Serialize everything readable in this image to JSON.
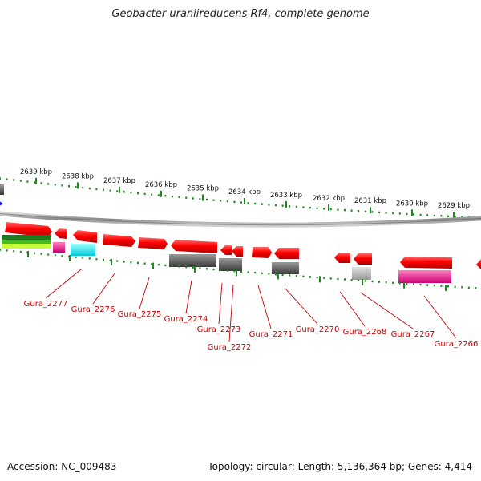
{
  "title": "Geobacter uraniireducens Rf4, complete genome",
  "footer": {
    "accession": "Accession: NC_009483",
    "summary": "Topology: circular; Length: 5,136,364 bp; Genes: 4,414"
  },
  "colors": {
    "backbone": "#8a8a8a",
    "tick": "#1a8a1a",
    "gene_label": "#cc0000",
    "cds": "#ff0000"
  },
  "scale_labels": [
    {
      "kbp": 2629,
      "label": "2629 kbp"
    },
    {
      "kbp": 2630,
      "label": "2630 kbp"
    },
    {
      "kbp": 2631,
      "label": "2631 kbp"
    },
    {
      "kbp": 2632,
      "label": "2632 kbp"
    },
    {
      "kbp": 2633,
      "label": "2633 kbp"
    },
    {
      "kbp": 2634,
      "label": "2634 kbp"
    },
    {
      "kbp": 2635,
      "label": "2635 kbp"
    },
    {
      "kbp": 2636,
      "label": "2636 kbp"
    },
    {
      "kbp": 2637,
      "label": "2637 kbp"
    },
    {
      "kbp": 2638,
      "label": "2638 kbp"
    },
    {
      "kbp": 2639,
      "label": "2639 kbp"
    }
  ],
  "gene_labels": [
    "Gura_2266",
    "Gura_2267",
    "Gura_2268",
    "Gura_2270",
    "Gura_2271",
    "Gura_2272",
    "Gura_2273",
    "Gura_2274",
    "Gura_2275",
    "Gura_2276",
    "Gura_2277"
  ]
}
